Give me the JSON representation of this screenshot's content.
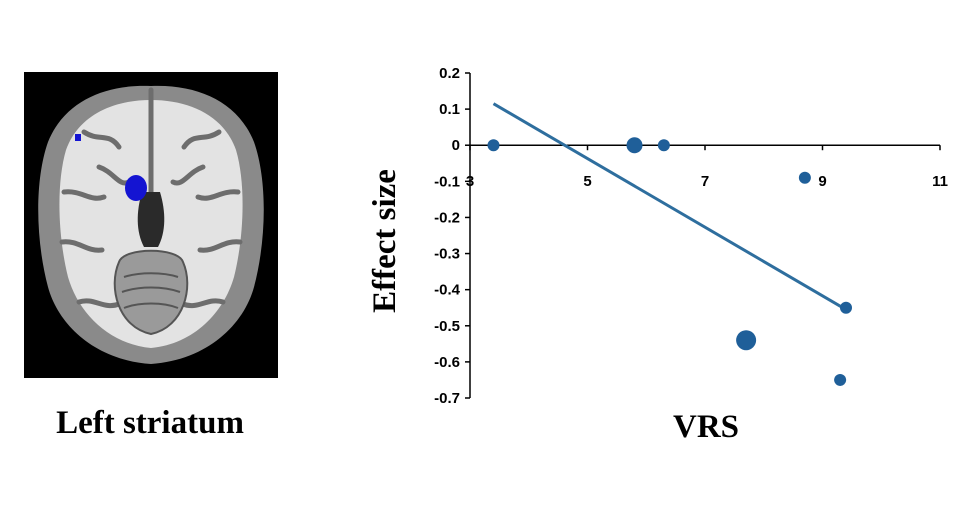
{
  "brain_image": {
    "caption": "Left striatum",
    "highlight_color": "#1414d2",
    "background_color": "#000000"
  },
  "chart_data": {
    "type": "scatter",
    "xlabel": "VRS",
    "ylabel": "Effect size",
    "xlim": [
      3,
      11
    ],
    "ylim": [
      -0.7,
      0.2
    ],
    "x_ticks": [
      3,
      5,
      7,
      9,
      11
    ],
    "y_ticks": [
      0.2,
      0.1,
      0,
      -0.1,
      -0.2,
      -0.3,
      -0.4,
      -0.5,
      -0.6,
      -0.7
    ],
    "x_tick_labels": [
      "3",
      "5",
      "7",
      "9",
      "11"
    ],
    "y_tick_labels": [
      "0.2",
      "0.1",
      "0",
      "-0.1",
      "-0.2",
      "-0.3",
      "-0.4",
      "-0.5",
      "-0.6",
      "-0.7"
    ],
    "x_axis_crosses_at": 0,
    "grid": false,
    "points": [
      {
        "x": 3.4,
        "y": 0.0,
        "size": "small"
      },
      {
        "x": 5.8,
        "y": 0.0,
        "size": "medium"
      },
      {
        "x": 6.3,
        "y": 0.0,
        "size": "small"
      },
      {
        "x": 8.7,
        "y": -0.09,
        "size": "small"
      },
      {
        "x": 7.7,
        "y": -0.54,
        "size": "large"
      },
      {
        "x": 9.3,
        "y": -0.65,
        "size": "small"
      },
      {
        "x": 9.4,
        "y": -0.45,
        "size": "small"
      }
    ],
    "trendline": {
      "x": [
        3.4,
        9.4
      ],
      "y": [
        0.115,
        -0.455
      ]
    },
    "point_color": "#1f5f99",
    "line_color": "#2e6e9e"
  }
}
